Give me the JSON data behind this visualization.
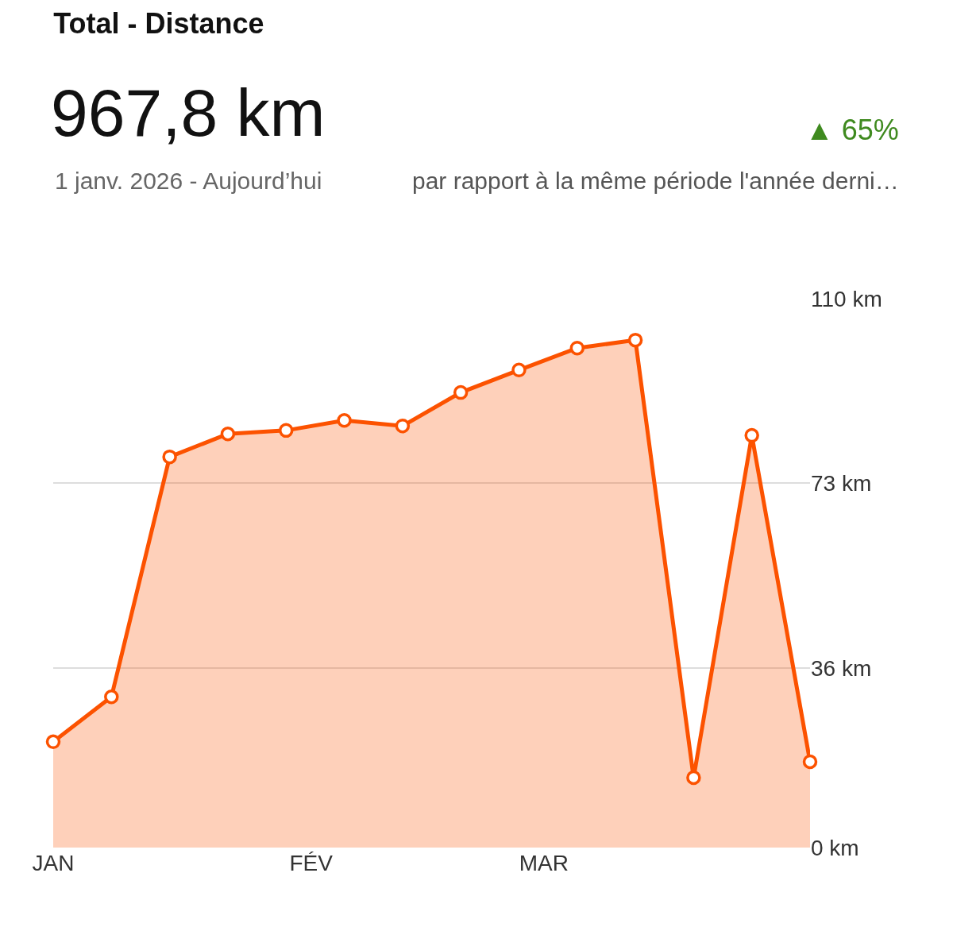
{
  "chart_data": {
    "type": "area",
    "title": "Total - Distance",
    "subtitle": "1 janv. 2026 - Aujourd’hui",
    "annotations": [
      "967,8 km",
      "▲ 65%",
      "par rapport à la même période l'année derni…"
    ],
    "x": [
      "2026-01-01",
      "2026-01-08",
      "2026-01-15",
      "2026-01-22",
      "2026-01-29",
      "2026-02-05",
      "2026-02-12",
      "2026-02-19",
      "2026-02-26",
      "2026-03-05",
      "2026-03-12",
      "2026-03-19",
      "2026-03-26",
      "2026-04-02"
    ],
    "series": [
      {
        "color": "#fc5200",
        "values": [
          21.2,
          30.2,
          78.3,
          82.9,
          83.6,
          85.6,
          84.5,
          91.2,
          95.7,
          100.1,
          101.7,
          14.0,
          82.6,
          17.2
        ]
      }
    ],
    "xlim": [
      "2026-01-01",
      "2026-04-02"
    ],
    "xticks": [
      {
        "value": "2026-01-01",
        "label": "JAN"
      },
      {
        "value": "2026-02-01",
        "label": "FÉV"
      },
      {
        "value": "2026-03-01",
        "label": "MAR"
      }
    ],
    "ylim": [
      0,
      110
    ],
    "yticks": [
      {
        "value": 0,
        "label": "0 km"
      },
      {
        "value": 36,
        "label": "36 km"
      },
      {
        "value": 73,
        "label": "73 km"
      },
      {
        "value": 110,
        "label": "110 km"
      }
    ],
    "grid": "y",
    "marker": "circle",
    "line_style": "solid"
  }
}
